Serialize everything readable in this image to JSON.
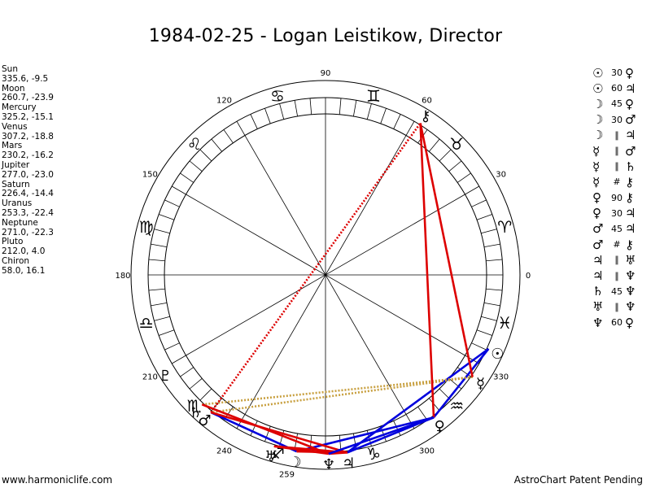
{
  "title": "1984-02-25 - Logan Leistikow, Director",
  "planets": [
    {
      "name": "Sun",
      "glyph": "☉",
      "lon": 335.6,
      "lat": -9.5,
      "value": "335.6, -9.5"
    },
    {
      "name": "Moon",
      "glyph": "☽",
      "lon": 260.7,
      "lat": -23.9,
      "value": "260.7, -23.9"
    },
    {
      "name": "Mercury",
      "glyph": "☿",
      "lon": 325.2,
      "lat": -15.1,
      "value": "325.2, -15.1"
    },
    {
      "name": "Venus",
      "glyph": "♀",
      "lon": 307.2,
      "lat": -18.8,
      "value": "307.2, -18.8"
    },
    {
      "name": "Mars",
      "glyph": "♂",
      "lon": 230.2,
      "lat": -16.2,
      "value": "230.2, -16.2"
    },
    {
      "name": "Jupiter",
      "glyph": "♃",
      "lon": 277.0,
      "lat": -23.0,
      "value": "277.0, -23.0"
    },
    {
      "name": "Saturn",
      "glyph": "♄",
      "lon": 226.4,
      "lat": -14.4,
      "value": "226.4, -14.4"
    },
    {
      "name": "Uranus",
      "glyph": "♅",
      "lon": 253.3,
      "lat": -22.4,
      "value": "253.3, -22.4"
    },
    {
      "name": "Neptune",
      "glyph": "♆",
      "lon": 271.0,
      "lat": -22.3,
      "value": "271.0, -22.3"
    },
    {
      "name": "Pluto",
      "glyph": "♇",
      "lon": 212.0,
      "lat": 4.0,
      "value": "212.0, 4.0"
    },
    {
      "name": "Chiron",
      "glyph": "⚷",
      "lon": 58.0,
      "lat": 16.1,
      "value": "58.0, 16.1"
    }
  ],
  "signs": [
    "♈",
    "♉",
    "♊",
    "♋",
    "♌",
    "♍",
    "♎",
    "♏",
    "♐",
    "♑",
    "♒",
    "♓"
  ],
  "degree_labels": [
    "0",
    "30",
    "60",
    "90",
    "120",
    "150",
    "180",
    "210",
    "240",
    "259",
    "300",
    "330"
  ],
  "degree_label_angles": [
    0,
    30,
    60,
    90,
    120,
    150,
    180,
    210,
    240,
    259,
    300,
    330
  ],
  "aspects": [
    {
      "p1": "☉",
      "type": "30",
      "p2": "♀",
      "color": "#0000dd",
      "style": "solid"
    },
    {
      "p1": "☉",
      "type": "60",
      "p2": "♃",
      "color": "#0000dd",
      "style": "solid"
    },
    {
      "p1": "☽",
      "type": "45",
      "p2": "♀",
      "color": "#0000dd",
      "style": "solid"
    },
    {
      "p1": "☽",
      "type": "30",
      "p2": "♂",
      "color": "#0000dd",
      "style": "solid"
    },
    {
      "p1": "☽",
      "type": "∥",
      "p2": "♃",
      "color": "#dd0000",
      "style": "solid"
    },
    {
      "p1": "☿",
      "type": "∥",
      "p2": "♂",
      "color": "#c8a040",
      "style": "dotted"
    },
    {
      "p1": "☿",
      "type": "∥",
      "p2": "♄",
      "color": "#c8a040",
      "style": "dotted"
    },
    {
      "p1": "☿",
      "type": "#",
      "p2": "⚷",
      "color": "#dd0000",
      "style": "solid"
    },
    {
      "p1": "♀",
      "type": "90",
      "p2": "⚷",
      "color": "#dd0000",
      "style": "solid"
    },
    {
      "p1": "♀",
      "type": "30",
      "p2": "♃",
      "color": "#0000dd",
      "style": "solid"
    },
    {
      "p1": "♂",
      "type": "45",
      "p2": "♃",
      "color": "#dd0000",
      "style": "solid"
    },
    {
      "p1": "♂",
      "type": "#",
      "p2": "⚷",
      "color": "#dd0000",
      "style": "dotted"
    },
    {
      "p1": "♃",
      "type": "∥",
      "p2": "♅",
      "color": "#dd0000",
      "style": "solid"
    },
    {
      "p1": "♃",
      "type": "∥",
      "p2": "♆",
      "color": "#dd0000",
      "style": "solid"
    },
    {
      "p1": "♄",
      "type": "45",
      "p2": "♆",
      "color": "#dd0000",
      "style": "solid"
    },
    {
      "p1": "♅",
      "type": "∥",
      "p2": "♆",
      "color": "#dd0000",
      "style": "solid"
    },
    {
      "p1": "♆",
      "type": "60",
      "p2": "♀",
      "color": "#0000dd",
      "style": "solid"
    }
  ],
  "footer": {
    "left": "www.harmoniclife.com",
    "right": "AstroChart Patent Pending"
  }
}
